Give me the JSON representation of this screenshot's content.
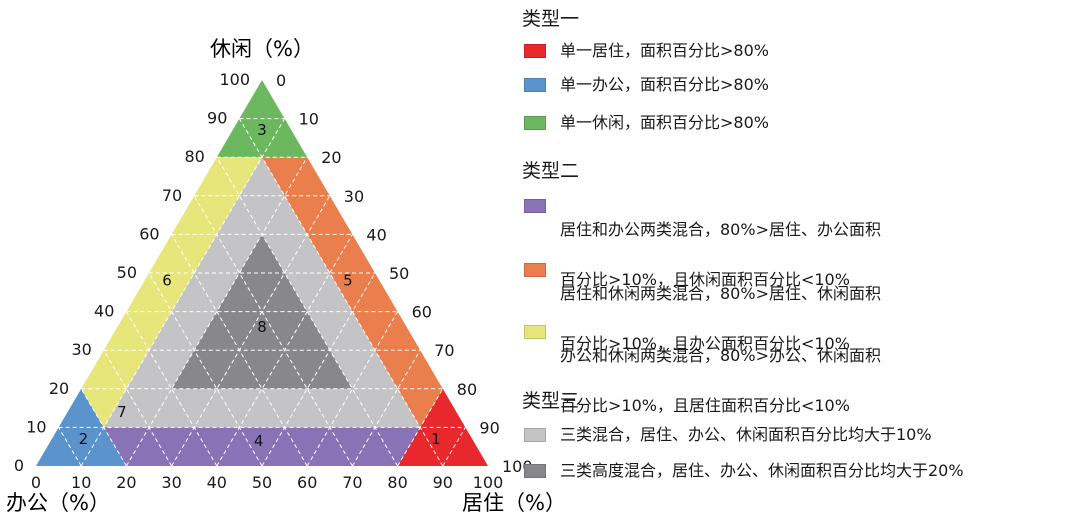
{
  "axes": {
    "leisure": "休闲（%）",
    "office": "办公（%）",
    "residential": "居住（%）"
  },
  "ticks": {
    "leisure": [
      "0",
      "10",
      "20",
      "30",
      "40",
      "50",
      "60",
      "70",
      "80",
      "90",
      "100"
    ],
    "office": [
      "0",
      "10",
      "20",
      "30",
      "40",
      "50",
      "60",
      "70",
      "80",
      "90",
      "100"
    ],
    "residential": [
      "0",
      "10",
      "20",
      "30",
      "40",
      "50",
      "60",
      "70",
      "80",
      "90",
      "100"
    ]
  },
  "regions": [
    {
      "id": "1",
      "color": "#e8282d"
    },
    {
      "id": "2",
      "color": "#5b94cc"
    },
    {
      "id": "3",
      "color": "#6bb85f"
    },
    {
      "id": "4",
      "color": "#8a72b6"
    },
    {
      "id": "5",
      "color": "#ea7e4c"
    },
    {
      "id": "6",
      "color": "#e7e67a"
    },
    {
      "id": "7",
      "color": "#c4c4c7"
    },
    {
      "id": "8",
      "color": "#88888c"
    }
  ],
  "legend": {
    "type1": {
      "title": "类型一",
      "items": [
        {
          "color": "#e8282d",
          "text": "单一居住，面积百分比>80%"
        },
        {
          "color": "#5b94cc",
          "text": "单一办公，面积百分比>80%"
        },
        {
          "color": "#6bb85f",
          "text": "单一休闲，面积百分比>80%"
        }
      ]
    },
    "type2": {
      "title": "类型二",
      "items": [
        {
          "color": "#8a72b6",
          "line1": "居住和办公两类混合，80%>居住、办公面积",
          "line2": "百分比>10%，且休闲面积百分比<10%"
        },
        {
          "color": "#ea7e4c",
          "line1": "居住和休闲两类混合，80%>居住、休闲面积",
          "line2": "百分比>10%，且办公面积百分比<10%"
        },
        {
          "color": "#e7e67a",
          "line1": "办公和休闲两类混合，80%>办公、休闲面积",
          "line2": "百分比>10%，且居住面积百分比<10%"
        }
      ]
    },
    "type3": {
      "title": "类型三",
      "items": [
        {
          "color": "#c4c4c7",
          "text": "三类混合，居住、办公、休闲面积百分比均大于10%"
        },
        {
          "color": "#88888c",
          "text": "三类高度混合，居住、办公、休闲面积百分比均大于20%"
        }
      ]
    }
  }
}
